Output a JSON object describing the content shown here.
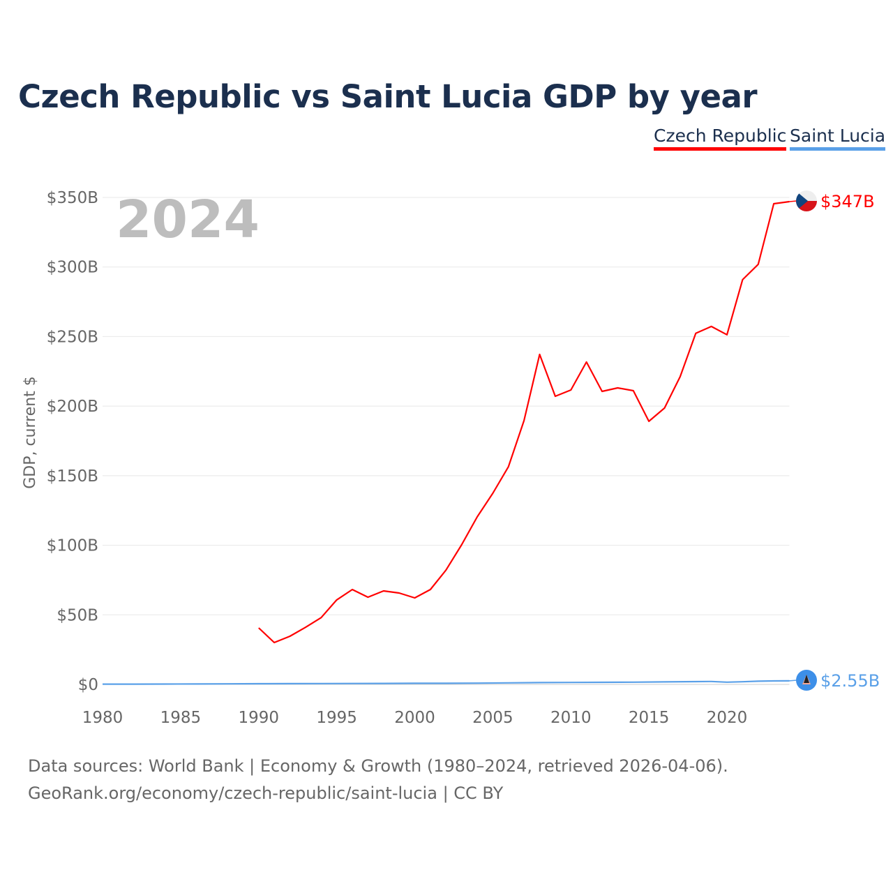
{
  "title": "Czech Republic vs Saint Lucia GDP by year",
  "legend": [
    "Czech Republic",
    "Saint Lucia"
  ],
  "current_year": "2024",
  "footer": {
    "line1": "Data sources: World Bank | Economy & Growth (1980–2024, retrieved 2026-04-06).",
    "line2": "GeoRank.org/economy/czech-republic/saint-lucia | CC BY"
  },
  "chart_data": {
    "type": "line",
    "title": "Czech Republic vs Saint Lucia GDP by year",
    "xlabel": "",
    "ylabel": "GDP, current $",
    "xlim": [
      1980,
      2024
    ],
    "ylim": [
      0,
      350
    ],
    "x_ticks": [
      1980,
      1985,
      1990,
      1995,
      2000,
      2005,
      2010,
      2015,
      2020
    ],
    "y_ticks": [
      0,
      50,
      100,
      150,
      200,
      250,
      300,
      350
    ],
    "y_tick_labels": [
      "$0",
      "$50B",
      "$100B",
      "$150B",
      "$200B",
      "$250B",
      "$300B",
      "$350B"
    ],
    "grid": true,
    "legend_position": "top-right",
    "series": [
      {
        "name": "Czech Republic",
        "color": "#ff0000",
        "end_label": "$347B",
        "x": [
          1990,
          1991,
          1992,
          1993,
          1994,
          1995,
          1996,
          1997,
          1998,
          1999,
          2000,
          2001,
          2002,
          2003,
          2004,
          2005,
          2006,
          2007,
          2008,
          2009,
          2010,
          2011,
          2012,
          2013,
          2014,
          2015,
          2016,
          2017,
          2018,
          2019,
          2020,
          2021,
          2022,
          2023,
          2024
        ],
        "values": [
          40.6,
          30.1,
          34.6,
          41,
          48,
          60.7,
          68.2,
          62.7,
          67.2,
          65.7,
          62.2,
          68.2,
          82.2,
          100.3,
          120.4,
          137.4,
          156.5,
          189.6,
          237.2,
          207.1,
          211.6,
          231.7,
          210.6,
          213.1,
          211.1,
          189.1,
          198.6,
          221.2,
          252.3,
          257.3,
          251.3,
          290.9,
          301.9,
          345.5,
          347
        ]
      },
      {
        "name": "Saint Lucia",
        "color": "#5aa0e8",
        "end_label": "$2.55B",
        "x": [
          1980,
          1982,
          1984,
          1986,
          1988,
          1990,
          1992,
          1994,
          1996,
          1998,
          2000,
          2002,
          2004,
          2006,
          2008,
          2010,
          2012,
          2014,
          2016,
          2018,
          2019,
          2020,
          2021,
          2022,
          2023,
          2024
        ],
        "values": [
          0.2,
          0.2,
          0.25,
          0.3,
          0.4,
          0.5,
          0.55,
          0.6,
          0.65,
          0.7,
          0.8,
          0.8,
          0.9,
          1.1,
          1.3,
          1.4,
          1.5,
          1.6,
          1.8,
          2.0,
          2.1,
          1.6,
          1.9,
          2.3,
          2.5,
          2.55
        ]
      }
    ]
  }
}
